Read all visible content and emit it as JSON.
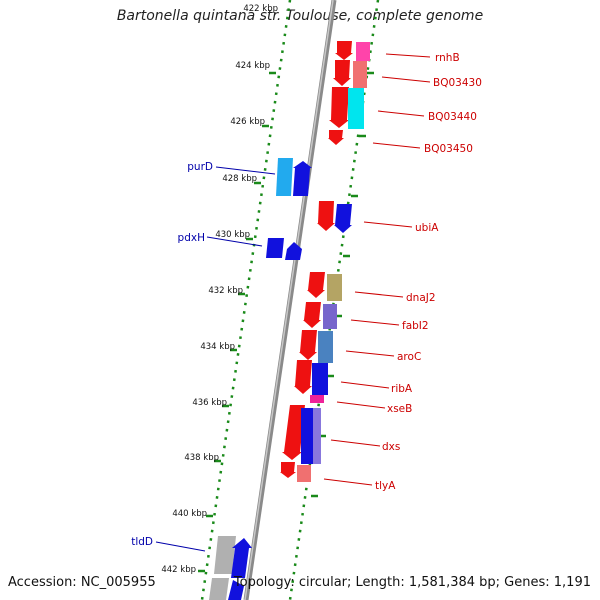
{
  "title": "Bartonella quintana str. Toulouse, complete genome",
  "accession": "Accession: NC_005955",
  "summary": "Topology: circular; Length: 1,581,384 bp; Genes: 1,191",
  "colors": {
    "backbone": "#8a8a8a",
    "dots": "#1a8a1a",
    "forward_label": "#0000aa",
    "reverse_label": "#cc0000"
  },
  "ticks": [
    {
      "kbp": 422,
      "label": "422 kbp"
    },
    {
      "kbp": 424,
      "label": "424 kbp"
    },
    {
      "kbp": 426,
      "label": "426 kbp"
    },
    {
      "kbp": 428,
      "label": "428 kbp"
    },
    {
      "kbp": 430,
      "label": "430 kbp"
    },
    {
      "kbp": 432,
      "label": "432 kbp"
    },
    {
      "kbp": 434,
      "label": "434 kbp"
    },
    {
      "kbp": 436,
      "label": "436 kbp"
    },
    {
      "kbp": 438,
      "label": "438 kbp"
    },
    {
      "kbp": 440,
      "label": "440 kbp"
    },
    {
      "kbp": 442,
      "label": "442 kbp"
    }
  ],
  "labels": [
    {
      "text": "rnhB",
      "strand": "reverse"
    },
    {
      "text": "BQ03430",
      "strand": "reverse"
    },
    {
      "text": "BQ03440",
      "strand": "reverse"
    },
    {
      "text": "BQ03450",
      "strand": "reverse"
    },
    {
      "text": "purD",
      "strand": "forward"
    },
    {
      "text": "ubiA",
      "strand": "reverse"
    },
    {
      "text": "pdxH",
      "strand": "forward"
    },
    {
      "text": "dnaJ2",
      "strand": "reverse"
    },
    {
      "text": "fabI2",
      "strand": "reverse"
    },
    {
      "text": "aroC",
      "strand": "reverse"
    },
    {
      "text": "ribA",
      "strand": "reverse"
    },
    {
      "text": "xseB",
      "strand": "reverse"
    },
    {
      "text": "dxs",
      "strand": "reverse"
    },
    {
      "text": "tlyA",
      "strand": "reverse"
    },
    {
      "text": "tldD",
      "strand": "forward"
    }
  ]
}
